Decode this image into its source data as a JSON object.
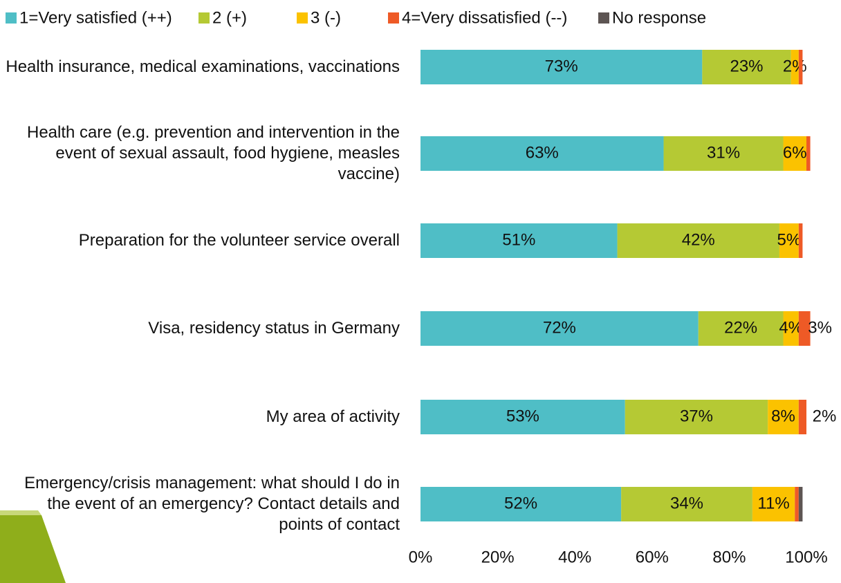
{
  "chart_data": {
    "type": "stacked-bar-horizontal",
    "categories": [
      "Health insurance, medical examinations, vaccinations",
      "Health care (e.g. prevention and intervention in the event of sexual assault, food hygiene, measles vaccine)",
      "Preparation for the volunteer service overall",
      "Visa, residency status in Germany",
      "My area of activity",
      "Emergency/crisis management: what should I do in the event of an emergency? Contact details and points of contact"
    ],
    "series": [
      {
        "name": "1=Very satisfied (++)",
        "color": "#4fbec6",
        "values": [
          73,
          63,
          51,
          72,
          53,
          52
        ],
        "value_labels": [
          "73%",
          "63%",
          "51%",
          "72%",
          "53%",
          "52%"
        ]
      },
      {
        "name": "2 (+)",
        "color": "#b5c934",
        "values": [
          23,
          31,
          42,
          22,
          37,
          34
        ],
        "value_labels": [
          "23%",
          "31%",
          "42%",
          "22%",
          "37%",
          "34%"
        ]
      },
      {
        "name": "3 (-)",
        "color": "#fbc200",
        "values": [
          2,
          6,
          5,
          4,
          8,
          11
        ],
        "value_labels": [
          "2%",
          "6%",
          "5%",
          "4%",
          "8%",
          "11%"
        ]
      },
      {
        "name": "4=Very dissatisfied (--)",
        "color": "#ee5a26",
        "values": [
          1,
          1,
          1,
          3,
          2,
          1
        ],
        "value_labels": [
          null,
          null,
          null,
          "3%",
          "2%",
          null
        ]
      },
      {
        "name": "No response",
        "color": "#5d5553",
        "values": [
          0,
          0,
          0,
          0,
          0,
          1
        ],
        "value_labels": [
          null,
          null,
          null,
          null,
          null,
          null
        ]
      }
    ],
    "xlim": [
      0,
      100
    ],
    "xticks": [
      {
        "value": 0,
        "label": "0%"
      },
      {
        "value": 20,
        "label": "20%"
      },
      {
        "value": 40,
        "label": "40%"
      },
      {
        "value": 60,
        "label": "60%"
      },
      {
        "value": 80,
        "label": "80%"
      },
      {
        "value": 100,
        "label": "100%"
      }
    ],
    "legend": "top"
  }
}
